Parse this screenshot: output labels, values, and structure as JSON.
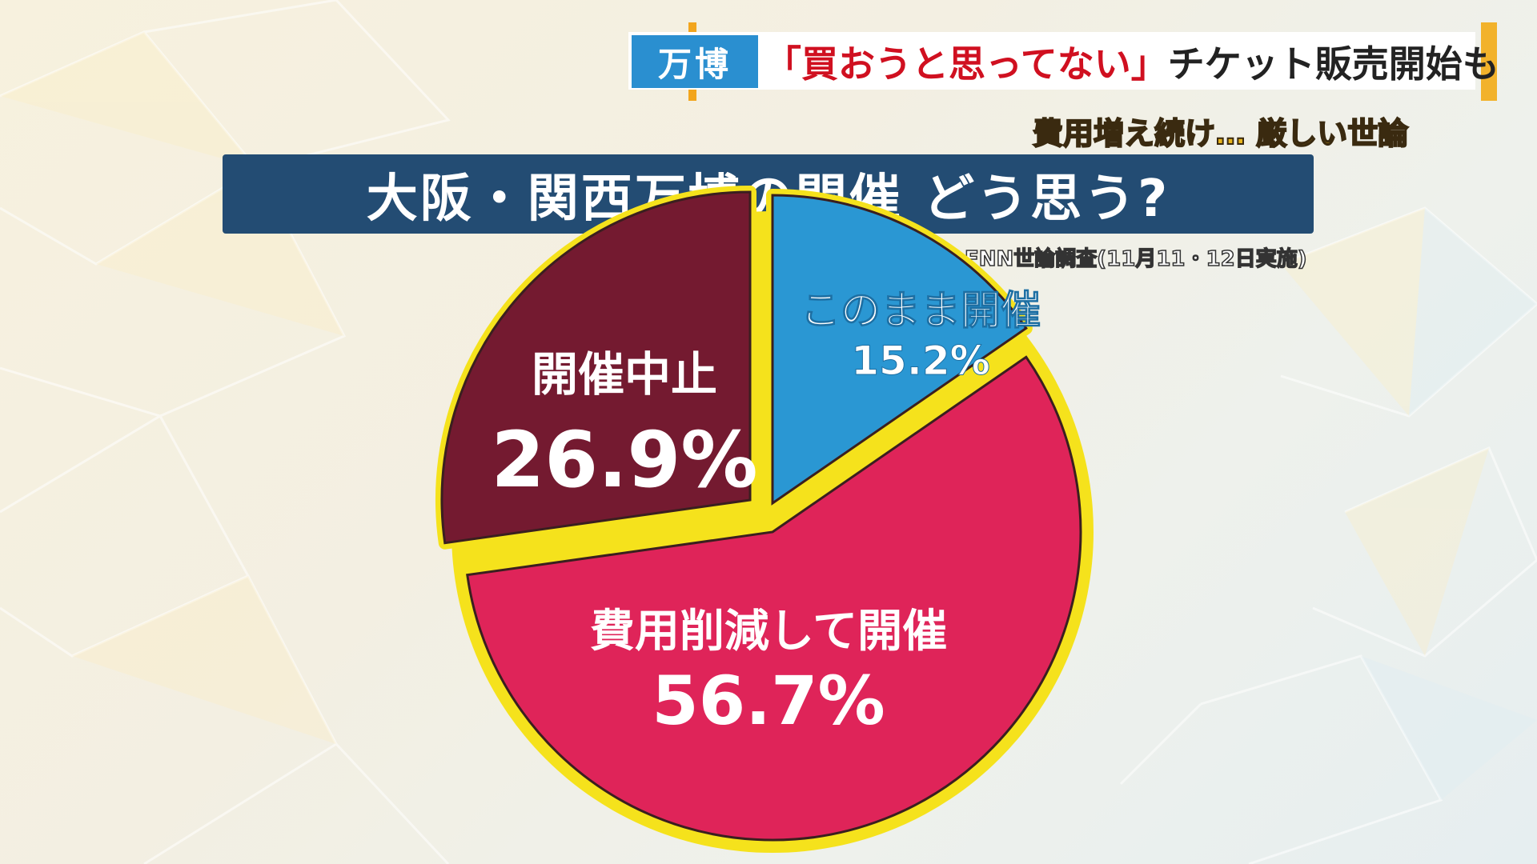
{
  "header": {
    "tag": "万博",
    "headline_quote": "「買おうと思ってない」",
    "headline_rest": "チケット販売開始も",
    "subline": "費用増え続け… 厳しい世論"
  },
  "title": "大阪・関西万博の開催 どう思う?",
  "source": "FNN世論調査(11月11・12日実施)",
  "colors": {
    "title_bg": "#234c73",
    "tag_bg": "#2a8fd0",
    "ring": "#f5e21c",
    "slice_continue": "#2a97d3",
    "slice_reduce": "#df2459",
    "slice_cancel": "#741a30"
  },
  "chart_data": {
    "type": "pie",
    "title": "大阪・関西万博の開催 どう思う?",
    "slices": [
      {
        "label": "このまま開催",
        "value": 15.2,
        "display": "15.2%",
        "color": "#2a97d3"
      },
      {
        "label": "費用削減して開催",
        "value": 56.7,
        "display": "56.7%",
        "color": "#df2459"
      },
      {
        "label": "開催中止",
        "value": 26.9,
        "display": "26.9%",
        "color": "#741a30"
      }
    ]
  }
}
